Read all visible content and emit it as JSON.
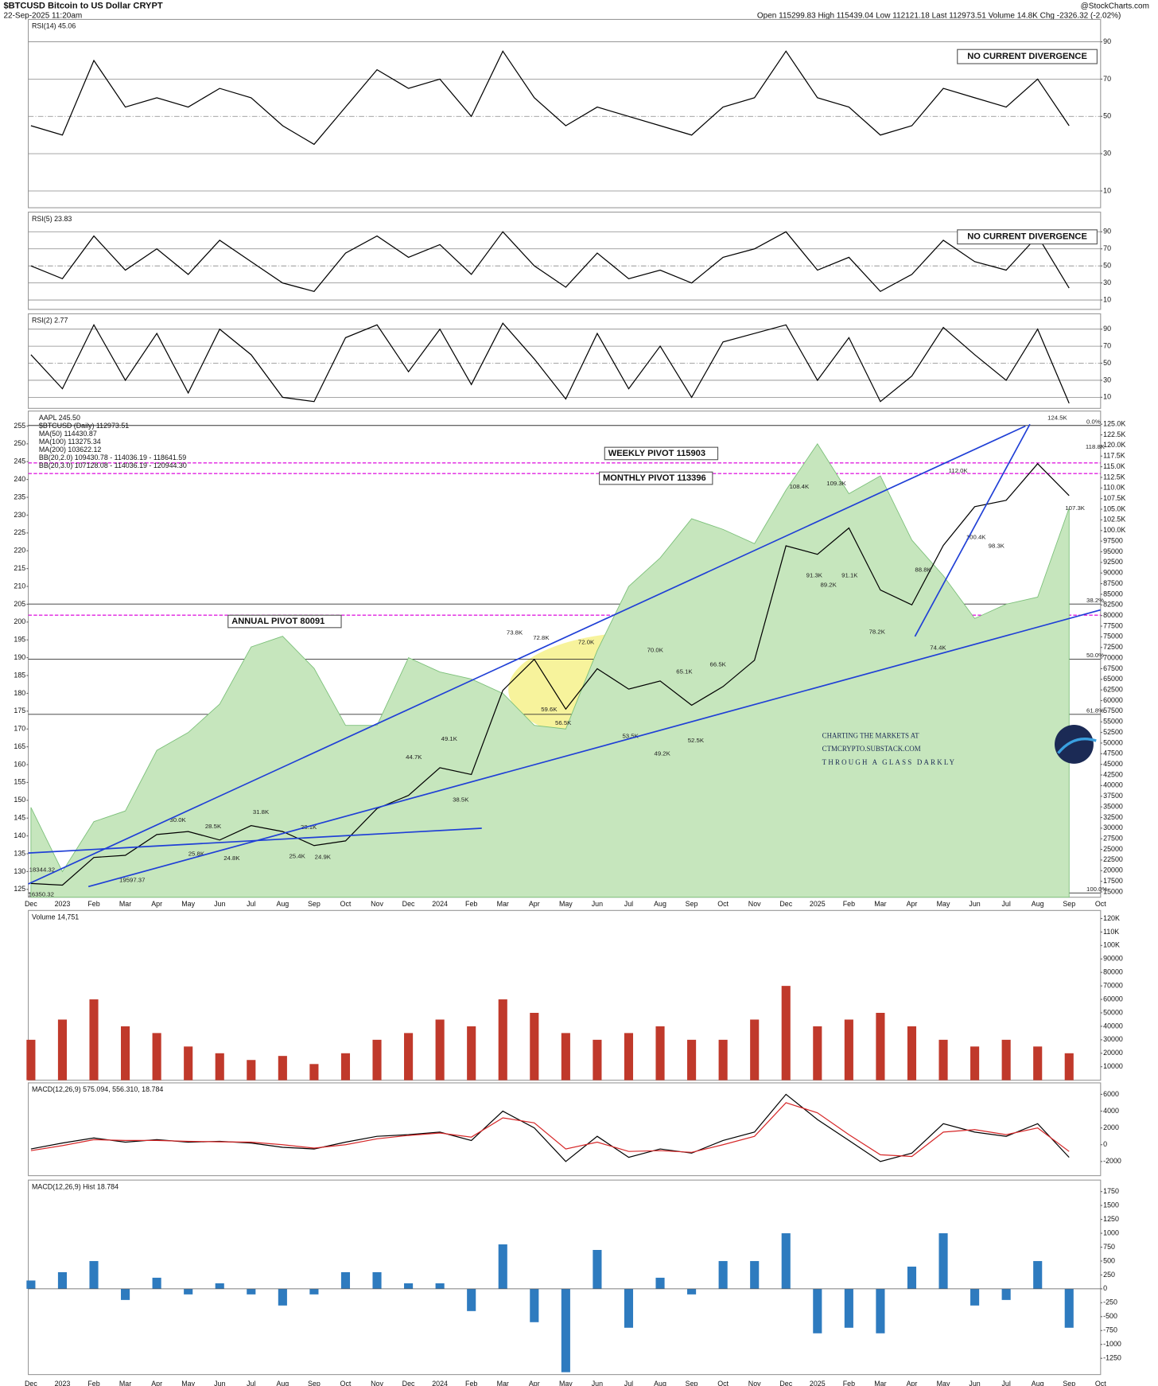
{
  "header": {
    "symbol": "$BTCUSD Bitcoin to US Dollar CRYPT",
    "timestamp": "22-Sep-2025 11:20am",
    "quote": "Open 115299.83 High 115439.04 Low 112121.18 Last 112973.51 Volume 14.8K Chg -2326.32 (-2.02%)",
    "source": "@StockCharts.com"
  },
  "chart_data": [
    {
      "type": "line",
      "title": "RSI(14) 45.06",
      "color": "#000000",
      "grid": true,
      "categories": [
        "Dec",
        "2023",
        "Feb",
        "Mar",
        "Apr",
        "May",
        "Jun",
        "Jul",
        "Aug",
        "Sep",
        "Oct",
        "Nov",
        "Dec",
        "2024",
        "Feb",
        "Mar",
        "Apr",
        "May",
        "Jun",
        "Jul",
        "Aug",
        "Sep",
        "Oct",
        "Nov",
        "Dec",
        "2025",
        "Feb",
        "Mar",
        "Apr",
        "May",
        "Jun",
        "Jul",
        "Aug",
        "Sep",
        "Oct"
      ],
      "values": [
        45,
        40,
        80,
        55,
        60,
        55,
        65,
        60,
        45,
        35,
        55,
        75,
        65,
        70,
        50,
        85,
        60,
        45,
        55,
        50,
        45,
        40,
        55,
        60,
        85,
        60,
        55,
        40,
        45,
        65,
        60,
        55,
        70,
        45,
        null
      ],
      "ylim": [
        1,
        102
      ],
      "yticks": [
        90,
        70,
        50,
        30,
        10
      ],
      "notes": [
        "NO CURRENT DIVERGENCE"
      ]
    },
    {
      "type": "line",
      "title": "RSI(5) 23.83",
      "color": "#000000",
      "grid": true,
      "values": [
        50,
        35,
        85,
        45,
        70,
        40,
        80,
        55,
        30,
        20,
        65,
        85,
        60,
        75,
        40,
        90,
        50,
        25,
        65,
        35,
        45,
        30,
        60,
        70,
        90,
        45,
        60,
        20,
        40,
        80,
        55,
        45,
        85,
        24,
        null
      ],
      "ylim": [
        -1,
        113
      ],
      "yticks": [
        90,
        70,
        50,
        30,
        10
      ],
      "notes": [
        "NO CURRENT DIVERGENCE"
      ]
    },
    {
      "type": "line",
      "title": "RSI(2) 2.77",
      "color": "#000000",
      "grid": true,
      "values": [
        60,
        20,
        95,
        30,
        85,
        15,
        90,
        60,
        10,
        5,
        80,
        95,
        40,
        90,
        25,
        97,
        55,
        8,
        85,
        20,
        70,
        10,
        75,
        85,
        95,
        30,
        80,
        5,
        35,
        92,
        60,
        30,
        90,
        3,
        null
      ],
      "ylim": [
        -3,
        108
      ],
      "yticks": [
        90,
        70,
        50,
        30,
        10
      ]
    },
    {
      "type": "line",
      "series": [
        {
          "name": "AAPL 245.50",
          "color": "#7cc07a",
          "fill": "#c6e6bd",
          "axis": "y2",
          "values": [
            148,
            130,
            144,
            147,
            164,
            169,
            177,
            193,
            196,
            187,
            171,
            171,
            190,
            186,
            184,
            180,
            171,
            170,
            192,
            210,
            218,
            229,
            226,
            222,
            237,
            250,
            236,
            241,
            223,
            213,
            201,
            205,
            207,
            232,
            null
          ]
        },
        {
          "name": "$BTCUSD (Daily) 112973.51",
          "color": "#000000",
          "values": [
            17000,
            16600,
            23100,
            23600,
            28500,
            29200,
            27200,
            30600,
            29200,
            25900,
            27000,
            34600,
            37700,
            44200,
            42600,
            62400,
            69700,
            58000,
            67500,
            62700,
            64600,
            58900,
            63300,
            69500,
            96400,
            94400,
            100600,
            86000,
            82500,
            96500,
            105600,
            107100,
            115700,
            108200,
            null
          ]
        }
      ],
      "indicator_labels": [
        "MA(50) 114430.87",
        "MA(100) 113275.34",
        "MA(200) 103622.12",
        "BB(20,2.0) 109430.78 - 114036.19 - 118641.59",
        "BB(20,3.0) 107128.08 - 114036.19 - 120944.30"
      ],
      "ylim": [
        13750,
        128100
      ],
      "yticks": [
        {
          "value": 125000,
          "label": "125.0K"
        },
        {
          "value": 122500,
          "label": "122.5K"
        },
        {
          "value": 120000,
          "label": "120.0K"
        },
        {
          "value": 117500,
          "label": "117.5K"
        },
        {
          "value": 115000,
          "label": "115.0K"
        },
        {
          "value": 112500,
          "label": "112.5K"
        },
        {
          "value": 110000,
          "label": "110.0K"
        },
        {
          "value": 107500,
          "label": "107.5K"
        },
        {
          "value": 105000,
          "label": "105.0K"
        },
        {
          "value": 102500,
          "label": "102.5K"
        },
        {
          "value": 100000,
          "label": "100.0K"
        },
        97500,
        95000,
        92500,
        90000,
        87500,
        85000,
        82500,
        80000,
        77500,
        75000,
        72500,
        70000,
        67500,
        65000,
        62500,
        60000,
        57500,
        55000,
        52500,
        50000,
        47500,
        45000,
        42500,
        40000,
        37500,
        35000,
        32500,
        30000,
        27500,
        25000,
        22500,
        20000,
        17500,
        15000
      ],
      "y2lim": [
        122.8,
        259.2
      ],
      "y2ticks": [
        125,
        130,
        135,
        140,
        145,
        150,
        155,
        160,
        165,
        170,
        175,
        180,
        185,
        190,
        195,
        200,
        205,
        210,
        215,
        220,
        225,
        230,
        235,
        240,
        245,
        250,
        255
      ],
      "pivots": [
        {
          "label": "WEEKLY PIVOT 115903",
          "value": 115903
        },
        {
          "label": "MONTHLY PIVOT 113396",
          "value": 113396
        },
        {
          "label": "ANNUAL PIVOT 80091",
          "value": 80091
        }
      ],
      "fibs": [
        {
          "label": "0.0%",
          "value": 124707
        },
        {
          "label": "38.2%",
          "value": 82705
        },
        {
          "label": "50.0%",
          "value": 69731
        },
        {
          "label": "61.8%",
          "value": 56757
        },
        {
          "label": "100.0%",
          "value": 14755
        }
      ],
      "annotations": [
        "124.5K",
        "118.8K",
        "112.0K",
        "108.4K",
        "109.3K",
        "107.3K",
        "100.4K",
        "98.3K",
        "91.3K",
        "89.2K",
        "91.1K",
        "88.8K",
        "78.2K",
        "74.4K",
        "73.8K",
        "72.8K",
        "72.0K",
        "70.0K",
        "66.5K",
        "65.1K",
        "59.6K",
        "56.5K",
        "53.5K",
        "52.5K",
        "49.2K",
        "49.1K",
        "44.7K",
        "38.5K",
        "31.8K",
        "30.0K",
        "28.5K",
        "28.1K",
        "25.8K",
        "24.8K",
        "25.4K",
        "24.9K",
        "19597.37",
        "18344.32",
        "16350.32"
      ],
      "watermark": [
        "CHARTING THE MARKETS AT",
        "CTMCRYPTO.SUBSTACK.COM",
        "THROUGH A GLASS DARKLY"
      ]
    },
    {
      "type": "bar",
      "title": "Volume 14,751",
      "color": "#c0392b",
      "values": [
        30000,
        45000,
        60000,
        40000,
        35000,
        25000,
        20000,
        15000,
        18000,
        12000,
        20000,
        30000,
        35000,
        45000,
        40000,
        60000,
        50000,
        35000,
        30000,
        35000,
        40000,
        30000,
        30000,
        45000,
        70000,
        40000,
        45000,
        50000,
        40000,
        30000,
        25000,
        30000,
        25000,
        20000,
        null
      ],
      "ylim": [
        0,
        126000
      ],
      "yticks": [
        {
          "value": 120000,
          "label": "120K"
        },
        {
          "value": 110000,
          "label": "110K"
        },
        {
          "value": 100000,
          "label": "100K"
        },
        90000,
        80000,
        70000,
        60000,
        50000,
        40000,
        30000,
        20000,
        10000
      ]
    },
    {
      "type": "line",
      "title": "MACD(12,26,9) 575.094, 556.310, 18.784",
      "series": [
        {
          "color": "#000000",
          "values": [
            -500,
            200,
            800,
            300,
            600,
            300,
            400,
            200,
            -300,
            -500,
            300,
            1000,
            1200,
            1500,
            500,
            4000,
            2000,
            -2000,
            1000,
            -1500,
            -500,
            -1000,
            500,
            1500,
            6000,
            3000,
            500,
            -2000,
            -1000,
            2500,
            1500,
            1000,
            2500,
            -1500,
            null
          ]
        },
        {
          "color": "#d62728",
          "values": [
            -700,
            -100,
            600,
            500,
            500,
            400,
            350,
            300,
            0,
            -400,
            0,
            700,
            1100,
            1400,
            900,
            3200,
            2600,
            -500,
            300,
            -800,
            -700,
            -900,
            0,
            1000,
            5000,
            3800,
            1200,
            -1200,
            -1400,
            1500,
            1800,
            1200,
            2000,
            -800,
            null
          ]
        }
      ],
      "ylim": [
        -3684,
        7368
      ],
      "yticks": [
        6000,
        4000,
        2000,
        0,
        -2000
      ]
    },
    {
      "type": "bar",
      "title": "MACD(12,26,9) Hist 18.784",
      "color": "#2e7bbf",
      "values": [
        150,
        300,
        500,
        -200,
        200,
        -100,
        100,
        -100,
        -300,
        -100,
        300,
        300,
        100,
        100,
        -400,
        800,
        -600,
        -1500,
        700,
        -700,
        200,
        -100,
        500,
        500,
        1000,
        -800,
        -700,
        -800,
        400,
        1000,
        -300,
        -200,
        500,
        -700,
        null
      ],
      "ylim": [
        -1542,
        1957
      ],
      "yticks": [
        1750,
        1500,
        1250,
        1000,
        750,
        500,
        250,
        0,
        -250,
        -500,
        -750,
        -1000,
        -1250
      ]
    }
  ]
}
